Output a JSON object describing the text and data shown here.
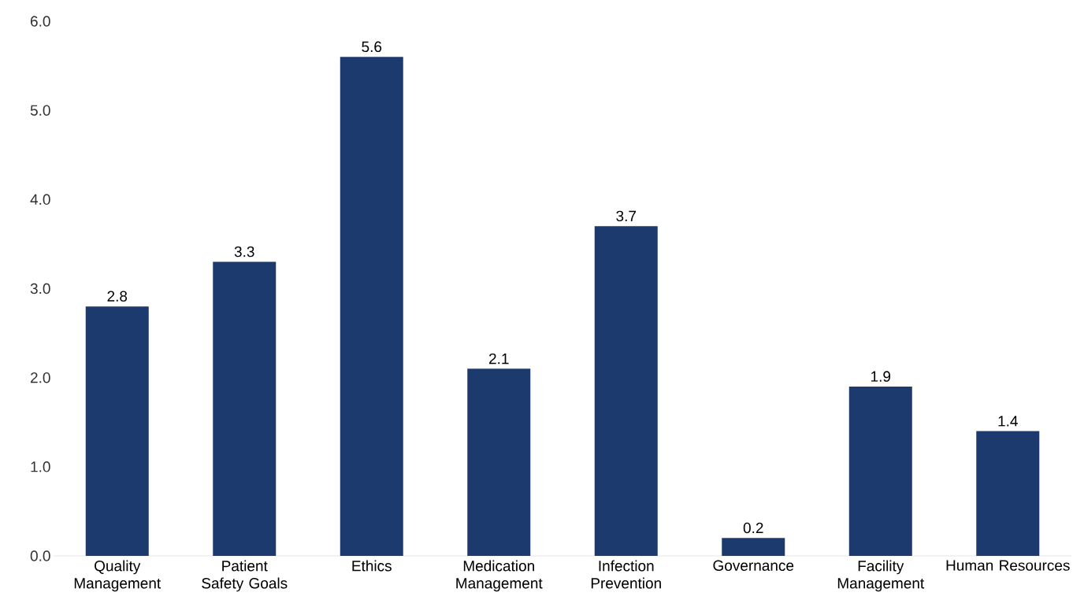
{
  "chart_data": {
    "type": "bar",
    "categories": [
      "Quality Management",
      "Patient Safety Goals",
      "Ethics",
      "Medication Management",
      "Infection Prevention",
      "Governance",
      "Facility Management",
      "Human Resources"
    ],
    "values": [
      2.8,
      3.3,
      5.6,
      2.1,
      3.7,
      0.2,
      1.9,
      1.4
    ],
    "color": "#1c3a6e",
    "ylim": [
      0,
      6
    ],
    "yticks": [
      {
        "value": 0,
        "label": "0.0"
      },
      {
        "value": 1,
        "label": "1.0"
      },
      {
        "value": 2,
        "label": "2.0"
      },
      {
        "value": 3,
        "label": "3.0"
      },
      {
        "value": 4,
        "label": "4.0"
      },
      {
        "value": 5,
        "label": "5.0"
      },
      {
        "value": 6,
        "label": "6.0"
      }
    ],
    "data_labels": true
  }
}
